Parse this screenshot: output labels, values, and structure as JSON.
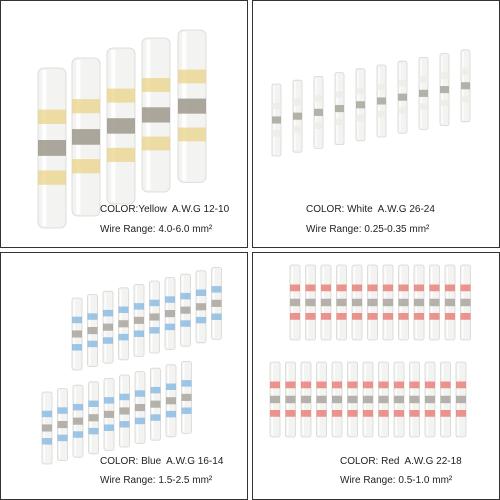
{
  "panels": [
    {
      "color": "COLOR:Yellow  A.W.G 12-10",
      "wire_range": "Wire Range: 4.0-6.0 mm²"
    },
    {
      "color": "COLOR: White  A.W.G 26-24",
      "wire_range": "Wire Range: 0.25-0.35 mm²"
    },
    {
      "color": "COLOR: Blue  A.W.G 16-14",
      "wire_range": "Wire Range: 1.5-2.5 mm²"
    },
    {
      "color": "COLOR: Red  A.W.G 22-18",
      "wire_range": "Wire Range: 0.5-1.0 mm²"
    }
  ]
}
